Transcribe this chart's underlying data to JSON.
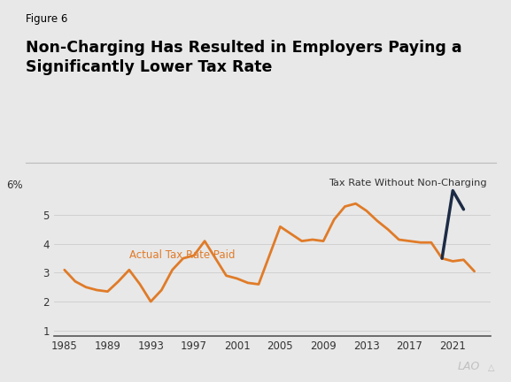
{
  "figure_label": "Figure 6",
  "title_line1": "Non-Charging Has Resulted in Employers Paying a",
  "title_line2": "Significantly Lower Tax Rate",
  "bg_color": "#e8e8e8",
  "plot_bg_color": "#e8e8e8",
  "orange_color": "#E07B28",
  "navy_color": "#1C2B45",
  "actual_label": "Actual Tax Rate Paid",
  "without_label": "Tax Rate Without Non-Charging",
  "actual_years": [
    1985,
    1986,
    1987,
    1988,
    1989,
    1990,
    1991,
    1992,
    1993,
    1994,
    1995,
    1996,
    1997,
    1998,
    1999,
    2000,
    2001,
    2002,
    2003,
    2004,
    2005,
    2006,
    2007,
    2008,
    2009,
    2010,
    2011,
    2012,
    2013,
    2014,
    2015,
    2016,
    2017,
    2018,
    2019,
    2020,
    2021,
    2022,
    2023
  ],
  "actual_values": [
    3.1,
    2.7,
    2.5,
    2.4,
    2.35,
    2.7,
    3.1,
    2.6,
    2.0,
    2.4,
    3.1,
    3.5,
    3.6,
    4.1,
    3.5,
    2.9,
    2.8,
    2.65,
    2.6,
    3.6,
    4.6,
    4.35,
    4.1,
    4.15,
    4.1,
    4.85,
    5.3,
    5.4,
    5.15,
    4.8,
    4.5,
    4.15,
    4.1,
    4.05,
    4.05,
    3.5,
    3.4,
    3.45,
    3.05
  ],
  "without_years": [
    2020,
    2021,
    2022
  ],
  "without_values": [
    3.5,
    5.85,
    5.2
  ],
  "ylim": [
    0.8,
    6.5
  ],
  "yticks": [
    1,
    2,
    3,
    4,
    5
  ],
  "ytick_top_label": "6%",
  "xtick_labels": [
    "1985",
    "1989",
    "1993",
    "1997",
    "2001",
    "2005",
    "2009",
    "2013",
    "2017",
    "2021"
  ],
  "xtick_positions": [
    1985,
    1989,
    1993,
    1997,
    2001,
    2005,
    2009,
    2013,
    2017,
    2021
  ],
  "separator_color": "#bbbbbb",
  "grid_color": "#cccccc",
  "text_color": "#333333",
  "lao_color": "#c0c0c0"
}
